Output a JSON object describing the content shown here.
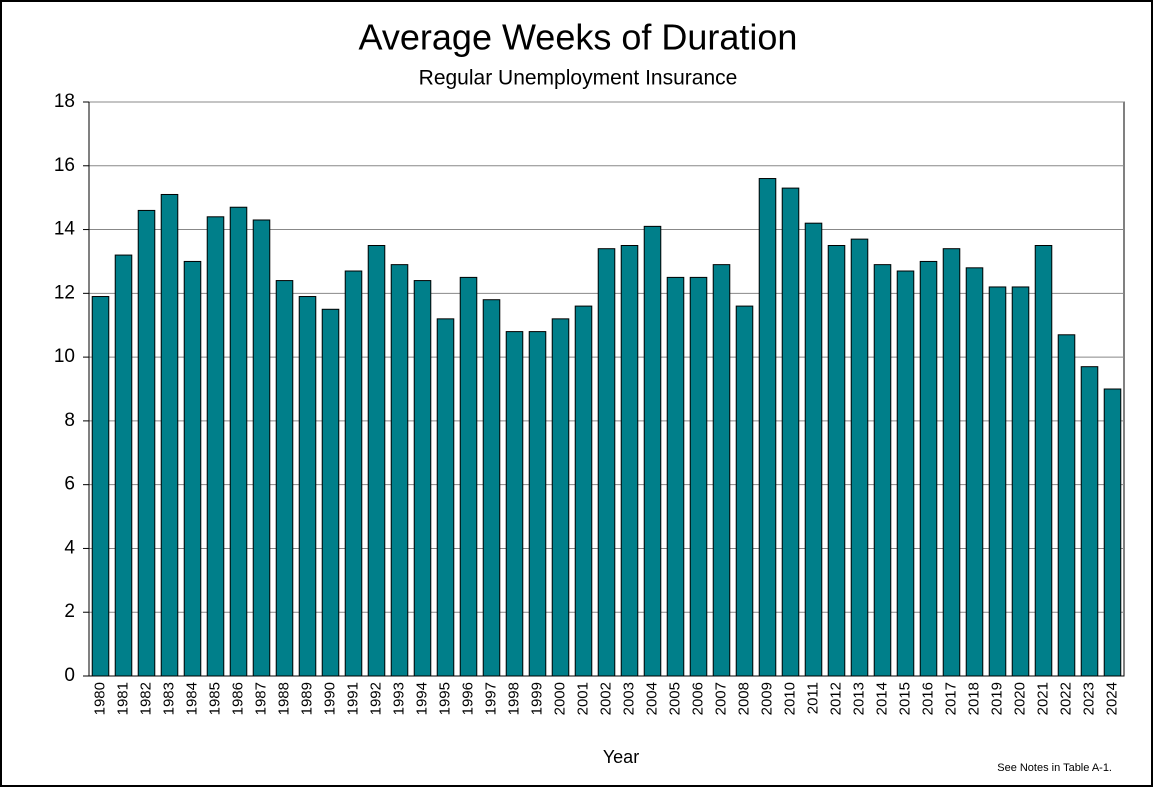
{
  "chart_data": {
    "type": "bar",
    "title": "Average  Weeks of Duration",
    "subtitle": "Regular  Unemployment  Insurance",
    "x_label": "Year",
    "note": "See Notes in Table A-1.",
    "categories": [
      "1980",
      "1981",
      "1982",
      "1983",
      "1984",
      "1985",
      "1986",
      "1987",
      "1988",
      "1989",
      "1990",
      "1991",
      "1992",
      "1993",
      "1994",
      "1995",
      "1996",
      "1997",
      "1998",
      "1999",
      "2000",
      "2001",
      "2002",
      "2003",
      "2004",
      "2005",
      "2006",
      "2007",
      "2008",
      "2009",
      "2010",
      "2011",
      "2012",
      "2013",
      "2014",
      "2015",
      "2016",
      "2017",
      "2018",
      "2019",
      "2020",
      "2021",
      "2022",
      "2023",
      "2024"
    ],
    "values": [
      11.9,
      13.2,
      14.6,
      15.1,
      13.0,
      14.4,
      14.7,
      14.3,
      12.4,
      11.9,
      11.5,
      12.7,
      13.5,
      12.9,
      12.4,
      11.2,
      12.5,
      11.8,
      10.8,
      10.8,
      11.2,
      11.6,
      13.4,
      13.5,
      14.1,
      12.5,
      12.5,
      12.9,
      11.6,
      15.6,
      15.3,
      14.2,
      13.5,
      13.7,
      12.9,
      12.7,
      13.0,
      13.4,
      12.8,
      12.2,
      12.2,
      13.5,
      10.7,
      9.7,
      9.0
    ],
    "color": "#007f8a",
    "ylim": [
      0,
      18
    ],
    "yticks": [
      0,
      2,
      4,
      6,
      8,
      10,
      12,
      14,
      16,
      18
    ],
    "grid": true
  }
}
